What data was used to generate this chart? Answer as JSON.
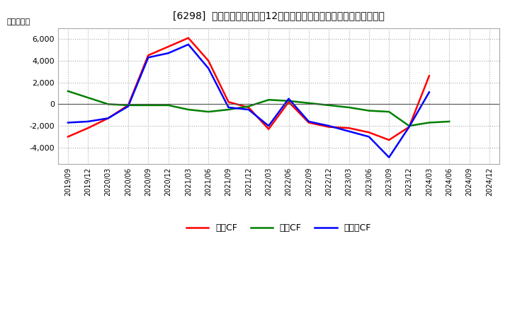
{
  "title": "[6298]  キャッシュフローの12か月移動合計の対前年同期増減額の推移",
  "ylabel": "（百万円）",
  "background_color": "#ffffff",
  "plot_background": "#ffffff",
  "grid_color": "#aaaaaa",
  "x_labels": [
    "2019/09",
    "2019/12",
    "2020/03",
    "2020/06",
    "2020/09",
    "2020/12",
    "2021/03",
    "2021/06",
    "2021/09",
    "2021/12",
    "2022/03",
    "2022/06",
    "2022/09",
    "2022/12",
    "2023/03",
    "2023/06",
    "2023/09",
    "2023/12",
    "2024/03",
    "2024/06",
    "2024/09",
    "2024/12"
  ],
  "operating_cf": [
    -3000,
    -2200,
    -1300,
    -100,
    4500,
    5300,
    6100,
    4000,
    200,
    -300,
    -2300,
    200,
    -1700,
    -2100,
    -2200,
    -2600,
    -3300,
    -2100,
    2600,
    null,
    null,
    null
  ],
  "investing_cf": [
    1200,
    600,
    0,
    -100,
    -100,
    -100,
    -500,
    -700,
    -500,
    -200,
    400,
    300,
    100,
    -100,
    -300,
    -600,
    -700,
    -2000,
    -1700,
    -1600,
    null,
    null
  ],
  "free_cf": [
    -1700,
    -1600,
    -1300,
    -200,
    4300,
    4700,
    5500,
    3300,
    -300,
    -500,
    -2000,
    500,
    -1600,
    -2000,
    -2500,
    -3000,
    -4900,
    -2100,
    1100,
    null,
    null,
    null
  ],
  "ylim": [
    -5500,
    7000
  ],
  "yticks": [
    -4000,
    -2000,
    0,
    2000,
    4000,
    6000
  ],
  "line_colors": {
    "operating": "#ff0000",
    "investing": "#008000",
    "free": "#0000ff"
  },
  "legend_labels": [
    "営業CF",
    "投資CF",
    "フリーCF"
  ]
}
